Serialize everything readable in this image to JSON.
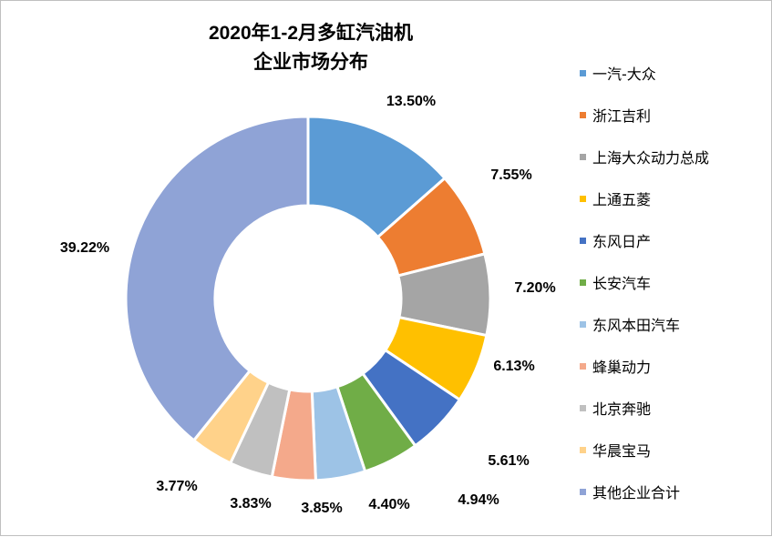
{
  "chart_data": {
    "type": "pie",
    "title_line1": "2020年1-2月多缸汽油机",
    "title_line2": "企业市场分布",
    "categories": [
      "一汽-大众",
      "浙江吉利",
      "上海大众动力总成",
      "上通五菱",
      "东风日产",
      "长安汽车",
      "东风本田汽车",
      "蜂巢动力",
      "北京奔驰",
      "华晨宝马",
      "其他企业合计"
    ],
    "values": [
      13.5,
      7.55,
      7.2,
      6.13,
      5.61,
      4.94,
      4.4,
      3.85,
      3.83,
      3.77,
      39.22
    ],
    "data_labels": [
      "13.50%",
      "7.55%",
      "7.20%",
      "6.13%",
      "5.61%",
      "4.94%",
      "4.40%",
      "3.85%",
      "3.83%",
      "3.77%",
      "39.22%"
    ],
    "colors": [
      "#5b9bd5",
      "#ed7d31",
      "#a5a5a5",
      "#ffc000",
      "#4472c4",
      "#70ad47",
      "#9dc3e6",
      "#f4a98b",
      "#c0c0c0",
      "#ffd28a",
      "#8fa3d6"
    ],
    "donut": true,
    "legend_position": "right"
  }
}
